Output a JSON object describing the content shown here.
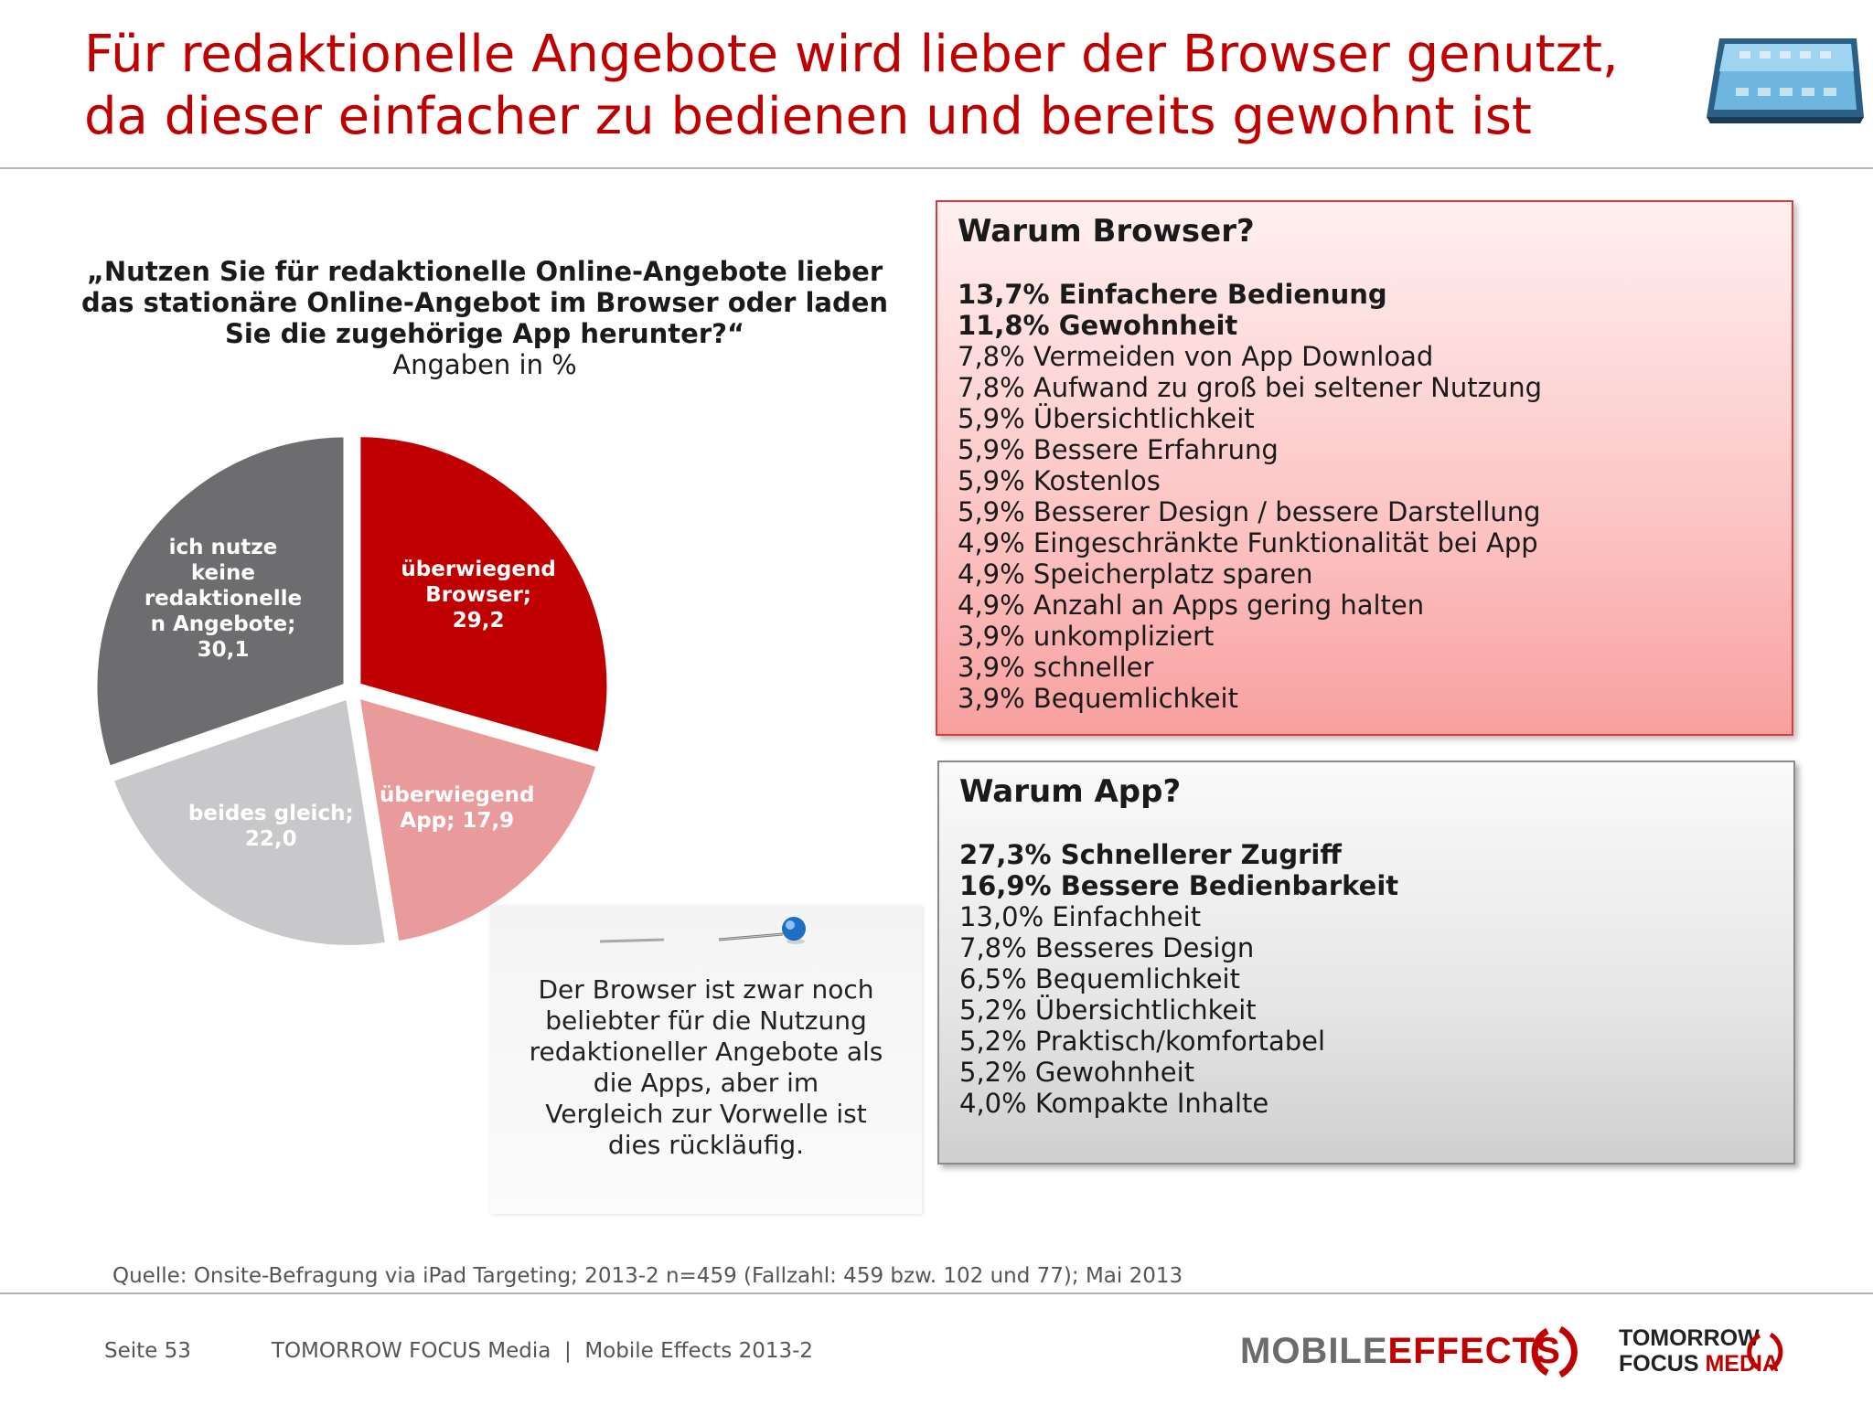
{
  "title": {
    "line1": "Für redaktionelle Angebote wird lieber der Browser genutzt,",
    "line2": "da dieser einfacher zu bedienen und bereits gewohnt ist"
  },
  "question": {
    "line1": "„Nutzen Sie für redaktionelle Online-Angebote lieber",
    "line2": "das stationäre Online-Angebot im Browser oder laden",
    "line3": "Sie die zugehörige App herunter?“",
    "unit": "Angaben in %"
  },
  "chart_data": {
    "type": "pie",
    "title": "„Nutzen Sie für redaktionelle Online-Angebote lieber das stationäre Online-Angebot im Browser oder laden Sie die zugehörige App herunter?“",
    "unit": "Angaben in %",
    "slices": [
      {
        "name": "überwiegend Browser",
        "value": 29.2,
        "color": "#c00000",
        "label_lines": [
          "überwiegend",
          "Browser;",
          "29,2"
        ]
      },
      {
        "name": "überwiegend App",
        "value": 17.9,
        "color": "#e99a9a",
        "label_lines": [
          "überwiegend",
          "App; 17,9"
        ]
      },
      {
        "name": "beides gleich",
        "value": 22.0,
        "color": "#c8c8cb",
        "label_lines": [
          "beides gleich;",
          "22,0"
        ]
      },
      {
        "name": "ich nutze keine redaktionellen Angebote",
        "value": 30.1,
        "color": "#6d6d70",
        "label_lines": [
          "ich nutze",
          "keine",
          "redaktionelle",
          "n Angebote;",
          "30,1"
        ]
      }
    ]
  },
  "browser_box": {
    "title": "Warum Browser?",
    "reasons": [
      {
        "text": "13,7% Einfachere Bedienung",
        "bold": true
      },
      {
        "text": "11,8% Gewohnheit",
        "bold": true
      },
      {
        "text": "7,8% Vermeiden von App Download",
        "bold": false
      },
      {
        "text": "7,8% Aufwand zu groß bei seltener Nutzung",
        "bold": false
      },
      {
        "text": "5,9% Übersichtlichkeit",
        "bold": false
      },
      {
        "text": "5,9% Bessere Erfahrung",
        "bold": false
      },
      {
        "text": "5,9% Kostenlos",
        "bold": false
      },
      {
        "text": "5,9% Besserer Design / bessere Darstellung",
        "bold": false
      },
      {
        "text": "4,9% Eingeschränkte Funktionalität bei App",
        "bold": false
      },
      {
        "text": "4,9% Speicherplatz sparen",
        "bold": false
      },
      {
        "text": "4,9% Anzahl an Apps gering halten",
        "bold": false
      },
      {
        "text": "3,9% unkompliziert",
        "bold": false
      },
      {
        "text": "3,9% schneller",
        "bold": false
      },
      {
        "text": "3,9% Bequemlichkeit",
        "bold": false
      }
    ]
  },
  "app_box": {
    "title": "Warum App?",
    "reasons": [
      {
        "text": "27,3% Schnellerer Zugriff",
        "bold": true
      },
      {
        "text": "16,9% Bessere Bedienbarkeit",
        "bold": true
      },
      {
        "text": "13,0% Einfachheit",
        "bold": false
      },
      {
        "text": "7,8% Besseres Design",
        "bold": false
      },
      {
        "text": "6,5% Bequemlichkeit",
        "bold": false
      },
      {
        "text": "5,2% Übersichtlichkeit",
        "bold": false
      },
      {
        "text": "5,2% Praktisch/komfortabel",
        "bold": false
      },
      {
        "text": "5,2% Gewohnheit",
        "bold": false
      },
      {
        "text": "4,0% Kompakte Inhalte",
        "bold": false
      }
    ]
  },
  "note": {
    "line1": "Der Browser ist zwar noch",
    "line2": "beliebter für die Nutzung",
    "line3": "redaktioneller Angebote als",
    "line4": "die Apps, aber im",
    "line5": "Vergleich zur Vorwelle ist",
    "line6": "dies rückläufig."
  },
  "source": "Quelle: Onsite-Befragung via iPad Targeting; 2013-2 n=459 (Fallzahl: 459 bzw. 102 und 77); Mai 2013",
  "footer": {
    "page": "Seite 53",
    "company": "TOMORROW FOCUS Media  |  Mobile Effects 2013-2",
    "logo_me_1": "MOBILE",
    "logo_me_2": "EFFECTS",
    "logo_tf_1": "TOMORROW",
    "logo_tf_2": "FOCUS",
    "logo_tf_3": "MEDIA"
  },
  "colors": {
    "title": "#c00000",
    "browser_box_border": "#e23a3a",
    "app_box_border": "#8a8a8a"
  }
}
